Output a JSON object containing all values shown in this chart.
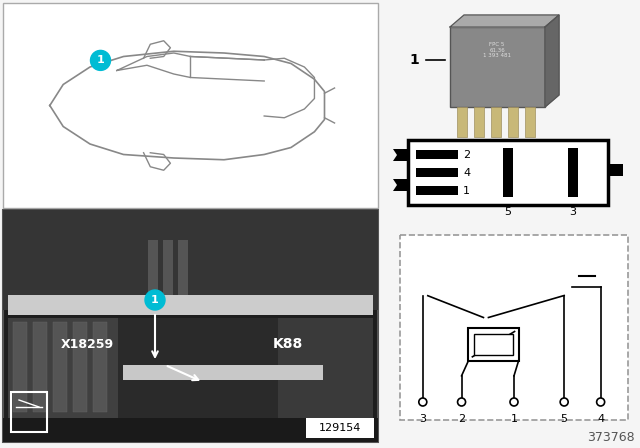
{
  "bg_color": "#f5f5f5",
  "teal_color": "#00BCD4",
  "part_number": "373768",
  "sub_number": "129154",
  "label_k88": "K88",
  "label_x18259": "X18259",
  "circuit_pins": [
    "3",
    "2",
    "1",
    "5",
    "4"
  ],
  "car_outline_color": "#888888",
  "photo_bg": "#2a2a2a",
  "relay_gray": "#888888",
  "relay_gray_dark": "#666666",
  "relay_gray_light": "#aaaaaa",
  "pin_color": "#c8b878",
  "black": "#000000",
  "white": "#ffffff",
  "dashed_border": "#999999"
}
